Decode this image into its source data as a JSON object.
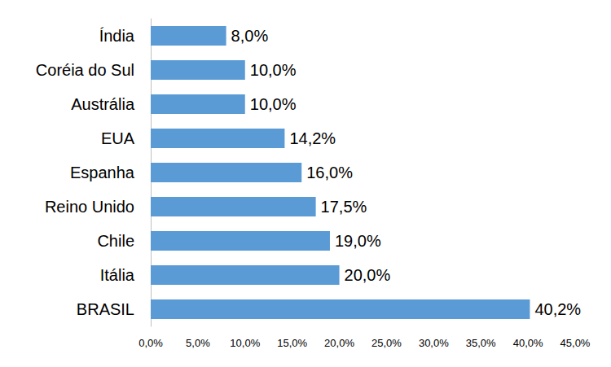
{
  "chart_data": {
    "type": "bar",
    "orientation": "horizontal",
    "categories": [
      "Índia",
      "Coréia do Sul",
      "Austrália",
      "EUA",
      "Espanha",
      "Reino Unido",
      "Chile",
      "Itália",
      "BRASIL"
    ],
    "values": [
      8.0,
      10.0,
      10.0,
      14.2,
      16.0,
      17.5,
      19.0,
      20.0,
      40.2
    ],
    "value_labels": [
      "8,0%",
      "10,0%",
      "10,0%",
      "14,2%",
      "16,0%",
      "17,5%",
      "19,0%",
      "20,0%",
      "40,2%"
    ],
    "color": "#5b9bd5",
    "xlim": [
      0,
      45
    ],
    "xticks": [
      {
        "value": 0,
        "label": "0,0%"
      },
      {
        "value": 5,
        "label": "5,0%"
      },
      {
        "value": 10,
        "label": "10,0%"
      },
      {
        "value": 15,
        "label": "15,0%"
      },
      {
        "value": 20,
        "label": "20,0%"
      },
      {
        "value": 25,
        "label": "25,0%"
      },
      {
        "value": 30,
        "label": "30,0%"
      },
      {
        "value": 35,
        "label": "35,0%"
      },
      {
        "value": 40,
        "label": "40,0%"
      },
      {
        "value": 45,
        "label": "45,0%"
      }
    ],
    "grid": false,
    "data_labels": true
  }
}
